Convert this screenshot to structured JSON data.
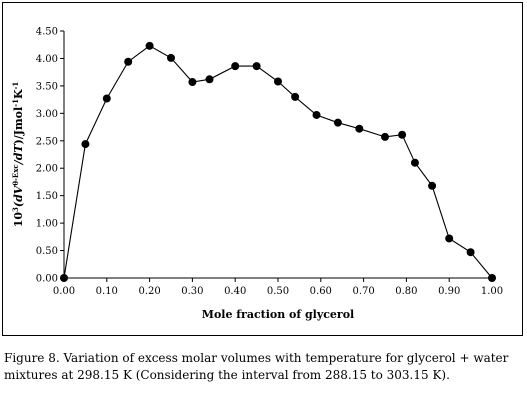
{
  "chart_data": {
    "type": "line",
    "xlabel": "Mole fraction of glycerol",
    "ylabel_parts": [
      "10",
      "3",
      "(dV",
      "θ-Exc",
      "/dT",
      ")/Jmol",
      "-1",
      "K",
      "-1"
    ],
    "xlim": [
      0,
      1
    ],
    "ylim": [
      0,
      4.5
    ],
    "x_ticks": [
      "0.00",
      "0.10",
      "0.20",
      "0.30",
      "0.40",
      "0.50",
      "0.60",
      "0.70",
      "0.80",
      "0.90",
      "1.00"
    ],
    "y_ticks": [
      "0.00",
      "0.50",
      "1.00",
      "1.50",
      "2.00",
      "2.50",
      "3.00",
      "3.50",
      "4.00",
      "4.50"
    ],
    "grid": false,
    "series": [
      {
        "marker": "circle",
        "color": "#000000",
        "x": [
          0.0,
          0.05,
          0.1,
          0.15,
          0.2,
          0.25,
          0.3,
          0.34,
          0.4,
          0.45,
          0.5,
          0.54,
          0.59,
          0.64,
          0.69,
          0.75,
          0.79,
          0.82,
          0.86,
          0.9,
          0.95,
          1.0
        ],
        "y": [
          0.0,
          2.44,
          3.27,
          3.94,
          4.23,
          4.01,
          3.57,
          3.62,
          3.86,
          3.86,
          3.58,
          3.3,
          2.97,
          2.83,
          2.72,
          2.57,
          2.61,
          2.1,
          1.68,
          0.72,
          0.47,
          0.0
        ]
      }
    ]
  },
  "caption": "Figure 8. Variation of excess molar volumes with temperature for glycerol + water mixtures at 298.15 K (Considering the interval from 288.15 to 303.15 K)."
}
